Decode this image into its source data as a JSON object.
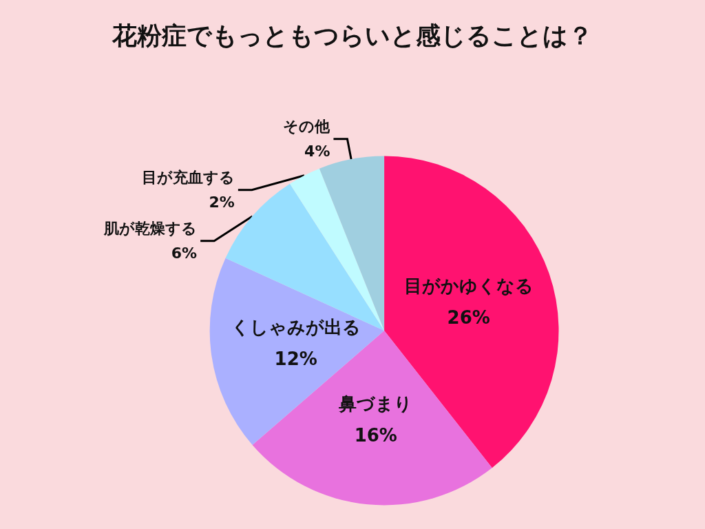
{
  "chart_data": {
    "type": "pie",
    "title": "花粉症でもっともつらいと感じることは？",
    "categories": [
      "目がかゆくなる",
      "鼻づまり",
      "くしゃみが出る",
      "肌が乾燥する",
      "目が充血する",
      "その他"
    ],
    "values": [
      26,
      16,
      12,
      6,
      2,
      4
    ],
    "value_labels": [
      "26%",
      "16%",
      "12%",
      "6%",
      "2%",
      "4%"
    ],
    "colors": [
      "#ff1270",
      "#e872de",
      "#aab0ff",
      "#97dfff",
      "#c0fbff",
      "#a0cfe0"
    ],
    "legend": false
  }
}
